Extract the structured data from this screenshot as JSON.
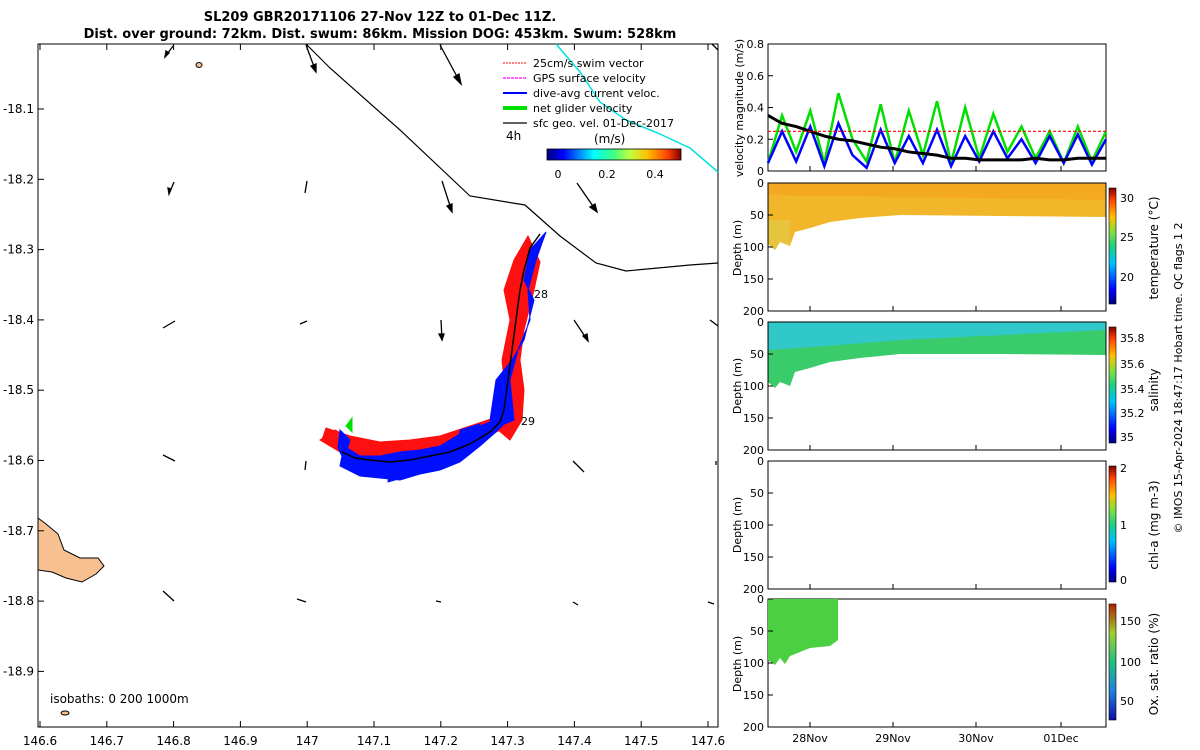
{
  "header": {
    "title_line1": "SL209 GBR20171106 27-Nov 12Z to 01-Dec 11Z.",
    "title_line2": "Dist. over ground: 72km. Dist. swum: 86km. Mission DOG: 453km. Swum: 528km"
  },
  "map": {
    "x_ticks": [
      "146.6",
      "146.7",
      "146.8",
      "146.9",
      "147",
      "147.1",
      "147.2",
      "147.3",
      "147.4",
      "147.5",
      "147.6"
    ],
    "y_ticks": [
      "-18.1",
      "-18.2",
      "-18.3",
      "-18.4",
      "-18.5",
      "-18.6",
      "-18.7",
      "-18.8",
      "-18.9"
    ],
    "legend": [
      {
        "label": "25cm/s swim vector",
        "color": "#ff0000"
      },
      {
        "label": "GPS surface velocity",
        "color": "#ff00ff"
      },
      {
        "label": "dive-avg current veloc.",
        "color": "#0000ff"
      },
      {
        "label": "net glider velocity",
        "color": "#00e000"
      },
      {
        "label": "sfc geo. vel. 01-Dec-2017",
        "color": "#000000"
      }
    ],
    "scale_label": "4h",
    "colorbar_unit": "(m/s)",
    "colorbar_ticks": [
      "0",
      "0.2",
      "0.4"
    ],
    "track_labels": [
      "28",
      "29"
    ],
    "isobaths_label": "isobaths: 0   200  1000m"
  },
  "chart_data": [
    {
      "type": "line",
      "title": "",
      "ylabel": "velocity magnitude (m/s)",
      "ylim": [
        0,
        0.8
      ],
      "y_ticks": [
        "0",
        "0.2",
        "0.4",
        "0.6",
        "0.8"
      ],
      "x": [
        0,
        1,
        2,
        3,
        4,
        5,
        6,
        7,
        8,
        9,
        10,
        11,
        12,
        13,
        14,
        15,
        16,
        17,
        18,
        19,
        20,
        21,
        22,
        23,
        24
      ],
      "series": [
        {
          "color": "#00e000",
          "values": [
            0.05,
            0.35,
            0.12,
            0.38,
            0.05,
            0.49,
            0.2,
            0.06,
            0.42,
            0.05,
            0.38,
            0.1,
            0.44,
            0.05,
            0.4,
            0.08,
            0.36,
            0.12,
            0.28,
            0.08,
            0.25,
            0.05,
            0.28,
            0.06,
            0.25
          ]
        },
        {
          "color": "#0000ff",
          "values": [
            0.05,
            0.25,
            0.06,
            0.28,
            0.03,
            0.3,
            0.1,
            0.02,
            0.26,
            0.05,
            0.22,
            0.05,
            0.26,
            0.03,
            0.22,
            0.06,
            0.25,
            0.08,
            0.2,
            0.05,
            0.22,
            0.05,
            0.23,
            0.04,
            0.2
          ]
        },
        {
          "color": "#000000",
          "values": [
            0.35,
            0.3,
            0.28,
            0.25,
            0.22,
            0.2,
            0.19,
            0.17,
            0.15,
            0.14,
            0.12,
            0.11,
            0.1,
            0.08,
            0.08,
            0.07,
            0.07,
            0.07,
            0.07,
            0.08,
            0.07,
            0.07,
            0.08,
            0.08,
            0.08
          ]
        },
        {
          "color": "#ff0000",
          "dashed": true,
          "values": [
            0.25,
            0.25,
            0.25,
            0.25,
            0.25,
            0.25,
            0.25,
            0.25,
            0.25,
            0.25,
            0.25,
            0.25,
            0.25,
            0.25,
            0.25,
            0.25,
            0.25,
            0.25,
            0.25,
            0.25,
            0.25,
            0.25,
            0.25,
            0.25,
            0.25
          ]
        }
      ]
    },
    {
      "type": "heatmap",
      "ylabel": "Depth (m)",
      "colorbar_label": "temperature (°C)",
      "colorbar_ticks": [
        "30",
        "25",
        "20"
      ],
      "colors": [
        "#f5a623",
        "#f0b830",
        "#e8c040"
      ]
    },
    {
      "type": "heatmap",
      "ylabel": "Depth (m)",
      "colorbar_label": "salinity",
      "colorbar_ticks": [
        "35.8",
        "35.6",
        "35.4",
        "35.2",
        "35"
      ],
      "colors": [
        "#2ec4c4",
        "#3cc870",
        "#40d040"
      ]
    },
    {
      "type": "heatmap",
      "ylabel": "Depth (m)",
      "colorbar_label": "chl-a (mg m-3)",
      "colorbar_ticks": [
        "2",
        "1",
        "0"
      ],
      "colors": []
    },
    {
      "type": "heatmap",
      "ylabel": "Depth (m)",
      "colorbar_label": "Ox. sat. ratio (%)",
      "colorbar_ticks": [
        "150",
        "100",
        "50"
      ],
      "colors": [
        "#50d040"
      ]
    }
  ],
  "depth_ticks": [
    "0",
    "50",
    "100",
    "150",
    "200"
  ],
  "time_ticks": [
    "28Nov",
    "29Nov",
    "30Nov",
    "01Dec"
  ],
  "footer_credit": "© IMOS 15-Apr-2024 18:47:17 Hobart time. QC flags 1  2"
}
